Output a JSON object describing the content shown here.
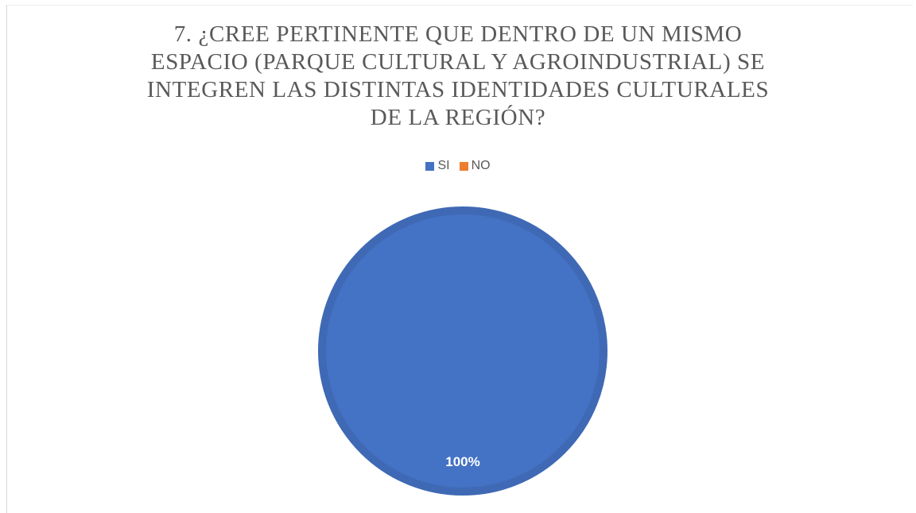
{
  "chart_data": {
    "type": "pie",
    "title_lines": [
      "7. ¿CREE PERTINENTE QUE DENTRO DE UN MISMO",
      "ESPACIO (PARQUE CULTURAL Y AGROINDUSTRIAL) SE",
      "INTEGREN LAS DISTINTAS IDENTIDADES CULTURALES",
      "DE LA REGIÓN?"
    ],
    "categories": [
      "SI",
      "NO"
    ],
    "values": [
      100,
      0
    ],
    "data_labels": [
      "100%",
      ""
    ],
    "colors": [
      "#4472c4",
      "#ed7d31"
    ],
    "legend_position": "top"
  }
}
